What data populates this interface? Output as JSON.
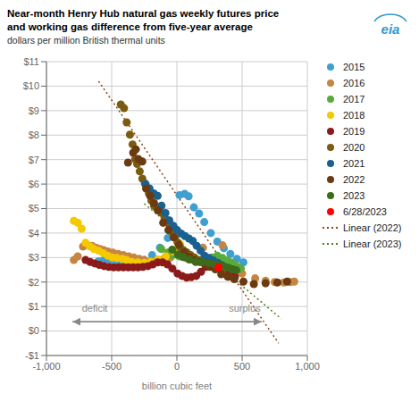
{
  "chart_data": {
    "type": "scatter",
    "title": [
      "Near-month Henry Hub natural gas weekly futures price",
      "and working gas difference from five-year average"
    ],
    "subtitle": "dollars per million British thermal units",
    "x_label": "billion cubic feet",
    "xlim": [
      -1000,
      1000
    ],
    "xticks": [
      {
        "value": -1000,
        "label": "-1,000"
      },
      -500,
      0,
      500,
      {
        "value": 1000,
        "label": "1,000"
      }
    ],
    "ylim": [
      -1,
      11
    ],
    "yticks": [
      {
        "value": -1,
        "label": "-$1"
      },
      {
        "value": 0,
        "label": "$0"
      },
      {
        "value": 1,
        "label": "$1"
      },
      {
        "value": 2,
        "label": "$2"
      },
      {
        "value": 3,
        "label": "$3"
      },
      {
        "value": 4,
        "label": "$4"
      },
      {
        "value": 5,
        "label": "$5"
      },
      {
        "value": 6,
        "label": "$6"
      },
      {
        "value": 7,
        "label": "$7"
      },
      {
        "value": 8,
        "label": "$8"
      },
      {
        "value": 9,
        "label": "$9"
      },
      {
        "value": 10,
        "label": "$10"
      },
      {
        "value": 11,
        "label": "$11"
      }
    ],
    "grid": true,
    "legend": "right",
    "series": [
      {
        "name": "2015",
        "type": "scatter",
        "color": "#3FA0D0",
        "x": [
          -600,
          -560,
          -530,
          -500,
          -460,
          -420,
          -380,
          -340,
          -300,
          -250,
          -190,
          -130,
          -70,
          -20,
          20,
          60,
          90,
          130,
          170,
          210,
          260,
          310,
          360,
          410,
          460,
          510
        ],
        "values": [
          2.85,
          2.9,
          2.95,
          2.92,
          2.88,
          2.82,
          2.78,
          2.75,
          2.8,
          2.9,
          3.1,
          3.4,
          3.8,
          4.2,
          5.55,
          5.6,
          5.5,
          5.05,
          4.8,
          4.45,
          4,
          3.65,
          3.38,
          3.15,
          2.95,
          2.8
        ]
      },
      {
        "name": "2016",
        "type": "scatter",
        "color": "#C68642",
        "x": [
          -790,
          -760,
          -720,
          -690,
          -650,
          -620,
          -590,
          -560,
          -530,
          -490,
          -450,
          -410,
          -370,
          -330,
          -290,
          -250,
          -200,
          -150,
          -100,
          -50,
          10,
          60,
          200,
          350,
          500,
          600,
          680,
          750,
          820,
          870,
          900
        ],
        "values": [
          2.9,
          3.05,
          3.45,
          3.52,
          3.48,
          3.4,
          3.35,
          3.3,
          3.25,
          3.2,
          3.15,
          3.1,
          3.05,
          3,
          2.95,
          2.9,
          2.85,
          2.88,
          2.95,
          3,
          3.1,
          3.25,
          3.4,
          3.5,
          2.35,
          2.15,
          2.05,
          2,
          1.98,
          2,
          2.02
        ]
      },
      {
        "name": "2017",
        "type": "scatter",
        "color": "#5AAA3C",
        "x": [
          -120,
          -70,
          -30,
          20,
          70,
          120,
          170,
          220,
          270,
          310,
          350,
          390,
          420,
          450,
          470,
          490
        ],
        "values": [
          3.35,
          3.2,
          3.1,
          3.05,
          2.98,
          2.92,
          2.88,
          2.92,
          3,
          3.08,
          2.98,
          2.88,
          2.78,
          2.68,
          2.6,
          2.55
        ]
      },
      {
        "name": "2018",
        "type": "scatter",
        "color": "#F5C800",
        "x": [
          -790,
          -760,
          -730,
          -700,
          -665,
          -635,
          -600,
          -565,
          -530,
          -495,
          -460,
          -420,
          -385,
          -345,
          -300,
          -250,
          -200,
          -145,
          -85,
          -25,
          25
        ],
        "values": [
          4.5,
          4.42,
          4.18,
          3.6,
          3.45,
          3.35,
          3.28,
          3.18,
          3.08,
          3,
          2.98,
          2.95,
          2.9,
          2.82,
          2.8,
          2.78,
          2.82,
          2.92,
          3.05,
          3.25,
          3.55
        ]
      },
      {
        "name": "2019",
        "type": "scatter",
        "color": "#8B1A1A",
        "x": [
          -700,
          -665,
          -630,
          -595,
          -558,
          -522,
          -485,
          -448,
          -410,
          -372,
          -335,
          -298,
          -260,
          -222,
          -185,
          -148,
          -110,
          -72,
          -35,
          5,
          40,
          75,
          110,
          148,
          185,
          222,
          258,
          292,
          325,
          358,
          390,
          420,
          445
        ],
        "values": [
          2.9,
          2.82,
          2.76,
          2.7,
          2.65,
          2.62,
          2.6,
          2.6,
          2.6,
          2.6,
          2.6,
          2.6,
          2.62,
          2.65,
          2.72,
          2.8,
          2.8,
          2.72,
          2.55,
          2.35,
          2.25,
          2.18,
          2.2,
          2.25,
          2.42,
          2.62,
          2.75,
          2.68,
          2.55,
          2.45,
          2.35,
          2.28,
          2.22
        ]
      },
      {
        "name": "2020",
        "type": "scatter",
        "color": "#7A5C10",
        "x": [
          -430,
          -405,
          -385,
          -360,
          -340,
          -320,
          -305,
          -285,
          -265,
          -245,
          -235,
          -215,
          -195,
          -175,
          -155,
          -135,
          -115,
          -95,
          -75,
          -55,
          -35,
          -15,
          5,
          25,
          50,
          78,
          105,
          135,
          165,
          200,
          240,
          295,
          345,
          395
        ],
        "values": [
          9.25,
          9.1,
          8.52,
          8.02,
          7.62,
          7.02,
          6.82,
          6.52,
          6.22,
          6.02,
          5.82,
          5.62,
          5.32,
          5.12,
          5.02,
          4.92,
          4.82,
          4.62,
          4.52,
          4.32,
          4.02,
          3.82,
          3.62,
          3.42,
          3.3,
          3.2,
          3.1,
          3,
          2.9,
          2.82,
          2.8,
          2.62,
          2.42,
          2.22
        ]
      },
      {
        "name": "2021",
        "type": "scatter",
        "color": "#1A6090",
        "x": [
          -240,
          -210,
          -178,
          -148,
          -118,
          -88,
          -58,
          -28,
          2,
          32,
          62,
          92,
          122,
          152,
          182,
          212,
          245,
          280,
          315,
          348
        ],
        "values": [
          6,
          5.82,
          5.62,
          5.52,
          5.12,
          4.82,
          4.52,
          4.3,
          4.12,
          3.98,
          3.88,
          3.78,
          3.68,
          3.48,
          3.28,
          3.08,
          2.98,
          2.88,
          2.78,
          2.68
        ]
      },
      {
        "name": "2022",
        "type": "scatter",
        "color": "#6B3A10",
        "x": [
          -375,
          -335,
          -315,
          -295,
          -265,
          -235,
          -205,
          -175,
          -145,
          -105,
          -65,
          -25,
          15,
          55,
          95,
          135,
          175,
          215,
          255,
          295,
          340,
          390,
          440,
          510,
          590,
          680,
          770,
          845
        ],
        "values": [
          6.88,
          7.28,
          7.42,
          7.02,
          6.92,
          5.82,
          5.52,
          5.22,
          4.92,
          4.42,
          4.12,
          3.82,
          3.52,
          3.22,
          3.02,
          2.88,
          2.82,
          2.72,
          2.62,
          2.52,
          2.32,
          2.22,
          2.12,
          2.02,
          1.92,
          1.95,
          1.98,
          2.02
        ]
      },
      {
        "name": "2023",
        "type": "scatter",
        "color": "#3D6B1A",
        "x": [
          -35,
          8,
          48,
          95,
          145,
          192,
          245,
          292,
          338,
          368,
          398,
          428,
          455
        ],
        "values": [
          3.32,
          3.12,
          3.02,
          2.92,
          2.82,
          2.82,
          2.78,
          2.72,
          2.68,
          2.62,
          2.58,
          2.52,
          2.48
        ]
      },
      {
        "name": "6/28/2023",
        "type": "scatter",
        "color": "#FF0000",
        "x": [
          318
        ],
        "values": [
          2.6
        ]
      },
      {
        "name": "Linear (2022)",
        "type": "line",
        "line_style": "dotted",
        "color": "#8B4513",
        "x": [
          -600,
          780
        ],
        "values": [
          10.2,
          -0.5
        ]
      },
      {
        "name": "Linear (2023)",
        "type": "line",
        "line_style": "dotted",
        "color": "#4E7A1E",
        "x": [
          -250,
          800
        ],
        "values": [
          5.2,
          0.5
        ]
      }
    ],
    "annotations": [
      {
        "type": "arrow",
        "x": [
          -800,
          650
        ],
        "y": 0.38
      },
      {
        "text": "deficit",
        "x": -630,
        "y": 0.62
      },
      {
        "text": "surplus",
        "x": 520,
        "y": 0.62
      },
      {
        "text": "eia"
      }
    ]
  }
}
